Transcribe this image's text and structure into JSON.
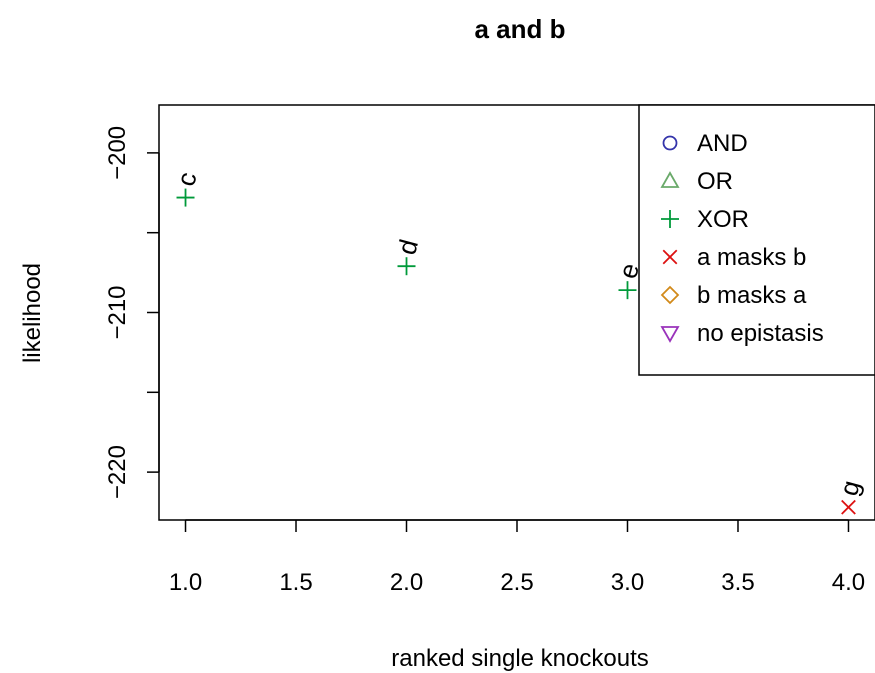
{
  "chart_data": {
    "type": "scatter",
    "title": "a and b",
    "xlabel": "ranked single knockouts",
    "ylabel": "likelihood",
    "xlim": [
      0.88,
      4.12
    ],
    "ylim": [
      -223.0,
      -197.0
    ],
    "x_ticks": [
      1.0,
      1.5,
      2.0,
      2.5,
      3.0,
      3.5,
      4.0
    ],
    "x_tick_labels": [
      "1.0",
      "1.5",
      "2.0",
      "2.5",
      "3.0",
      "3.5",
      "4.0"
    ],
    "y_ticks": [
      -200,
      -210,
      -220
    ],
    "y_tick_labels": [
      "−200",
      "−210",
      "−220"
    ],
    "grid": false,
    "legend_position": "top-right",
    "legend": [
      {
        "name": "AND",
        "marker": "circle",
        "color": "#3333aa"
      },
      {
        "name": "OR",
        "marker": "triangle-up",
        "color": "#6aaa6a"
      },
      {
        "name": "XOR",
        "marker": "plus",
        "color": "#009a3a"
      },
      {
        "name": "a masks b",
        "marker": "cross",
        "color": "#dd1111"
      },
      {
        "name": "b masks a",
        "marker": "diamond",
        "color": "#d28a1a"
      },
      {
        "name": "no epistasis",
        "marker": "triangle-down",
        "color": "#9a33bb"
      }
    ],
    "points": [
      {
        "x": 1,
        "y": -202.8,
        "label": "c",
        "marker": "plus",
        "color": "#009a3a"
      },
      {
        "x": 2,
        "y": -207.1,
        "label": "d",
        "marker": "plus",
        "color": "#009a3a"
      },
      {
        "x": 3,
        "y": -208.6,
        "label": "e",
        "marker": "plus",
        "color": "#009a3a"
      },
      {
        "x": 4,
        "y": -222.2,
        "label": "g",
        "marker": "cross",
        "color": "#dd1111"
      }
    ]
  }
}
